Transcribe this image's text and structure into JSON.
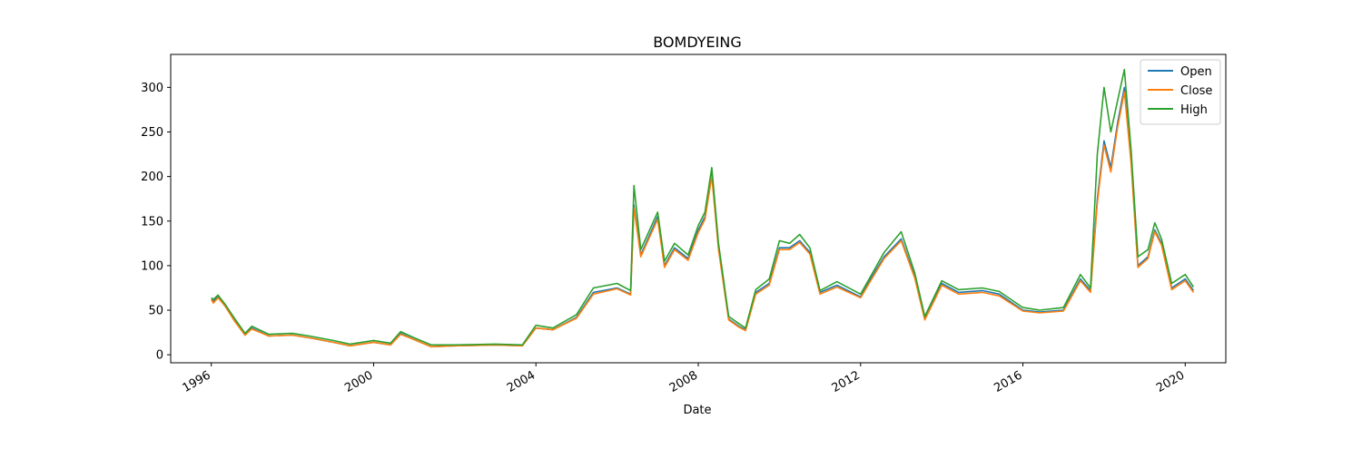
{
  "chart_data": {
    "type": "line",
    "title": "BOMDYEING",
    "xlabel": "Date",
    "ylabel": "",
    "xlim": [
      "1995-01-01",
      "2021-01-01"
    ],
    "ylim": [
      -9,
      337
    ],
    "x_ticks": [
      "1996",
      "2000",
      "2004",
      "2008",
      "2012",
      "2016",
      "2020"
    ],
    "y_ticks": [
      0,
      50,
      100,
      150,
      200,
      250,
      300
    ],
    "legend_position": "top-right",
    "grid": false,
    "x": [
      "1996-01-01",
      "1996-01-20",
      "1996-03-01",
      "1996-05-01",
      "1996-08-01",
      "1996-11-01",
      "1997-01-01",
      "1997-06-01",
      "1998-01-01",
      "1998-06-01",
      "1999-01-01",
      "1999-06-01",
      "2000-01-01",
      "2000-06-01",
      "2000-09-01",
      "2001-01-01",
      "2001-06-01",
      "2002-01-01",
      "2003-01-01",
      "2003-09-01",
      "2004-01-01",
      "2004-06-01",
      "2005-01-01",
      "2005-06-01",
      "2006-01-01",
      "2006-05-01",
      "2006-06-01",
      "2006-08-01",
      "2007-01-01",
      "2007-03-01",
      "2007-06-01",
      "2007-10-01",
      "2008-01-01",
      "2008-03-01",
      "2008-05-01",
      "2008-07-01",
      "2008-10-01",
      "2009-01-01",
      "2009-03-01",
      "2009-06-01",
      "2009-10-01",
      "2010-01-01",
      "2010-04-01",
      "2010-07-01",
      "2010-10-01",
      "2011-01-01",
      "2011-06-01",
      "2012-01-01",
      "2012-04-01",
      "2012-08-01",
      "2013-01-01",
      "2013-05-01",
      "2013-08-01",
      "2014-01-01",
      "2014-06-01",
      "2015-01-01",
      "2015-06-01",
      "2016-01-01",
      "2016-06-01",
      "2017-01-01",
      "2017-06-01",
      "2017-09-01",
      "2017-11-01",
      "2018-01-01",
      "2018-03-01",
      "2018-05-01",
      "2018-07-01",
      "2018-09-01",
      "2018-11-01",
      "2019-02-01",
      "2019-04-01",
      "2019-06-01",
      "2019-09-01",
      "2020-01-01",
      "2020-03-15"
    ],
    "series": [
      {
        "name": "Open",
        "color": "#1f77b4",
        "values": [
          62,
          60,
          65,
          55,
          38,
          22,
          30,
          21,
          22,
          19,
          14,
          10,
          14,
          11,
          24,
          17,
          9,
          10,
          11,
          10,
          30,
          28,
          42,
          70,
          75,
          68,
          168,
          112,
          155,
          100,
          120,
          108,
          140,
          155,
          205,
          120,
          40,
          32,
          28,
          70,
          80,
          120,
          120,
          128,
          115,
          70,
          78,
          65,
          85,
          110,
          130,
          88,
          40,
          80,
          70,
          72,
          68,
          50,
          48,
          50,
          85,
          72,
          175,
          240,
          210,
          260,
          300,
          220,
          100,
          110,
          140,
          125,
          75,
          85,
          72
        ]
      },
      {
        "name": "Close",
        "color": "#ff7f0e",
        "values": [
          62,
          58,
          64,
          55,
          37,
          22,
          29,
          21,
          22,
          19,
          14,
          10,
          14,
          11,
          23,
          17,
          9,
          10,
          11,
          10,
          30,
          28,
          41,
          68,
          74,
          67,
          165,
          110,
          152,
          98,
          118,
          106,
          137,
          152,
          200,
          118,
          39,
          31,
          27,
          68,
          78,
          118,
          118,
          126,
          113,
          68,
          76,
          64,
          83,
          108,
          128,
          86,
          39,
          78,
          68,
          70,
          66,
          49,
          47,
          49,
          83,
          70,
          170,
          235,
          205,
          255,
          295,
          215,
          98,
          108,
          138,
          123,
          73,
          83,
          70
        ]
      },
      {
        "name": "High",
        "color": "#2ca02c",
        "values": [
          64,
          62,
          67,
          57,
          40,
          24,
          32,
          23,
          24,
          21,
          16,
          12,
          16,
          13,
          26,
          19,
          11,
          11,
          12,
          11,
          33,
          30,
          45,
          75,
          80,
          72,
          190,
          118,
          160,
          105,
          125,
          112,
          145,
          160,
          210,
          125,
          43,
          35,
          30,
          73,
          85,
          128,
          125,
          135,
          120,
          72,
          82,
          68,
          88,
          115,
          138,
          92,
          43,
          83,
          73,
          75,
          71,
          53,
          50,
          53,
          90,
          75,
          225,
          300,
          250,
          285,
          320,
          230,
          110,
          118,
          148,
          130,
          80,
          90,
          76
        ]
      }
    ]
  }
}
